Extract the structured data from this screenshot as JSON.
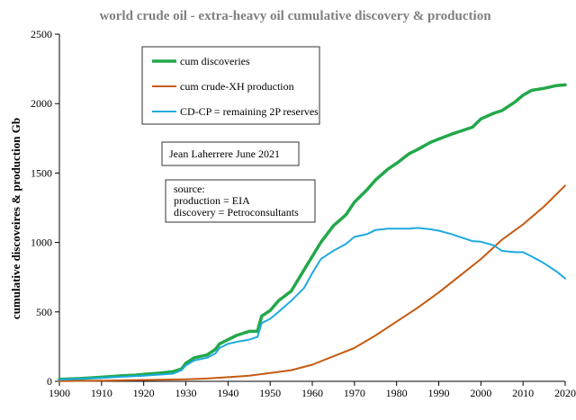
{
  "chart_data": {
    "type": "line",
    "title": "world crude oil - extra-heavy oil cumulative discovery & production",
    "xlabel": "",
    "ylabel": "cumulative discoveires & production Gb",
    "xlim": [
      1900,
      2020
    ],
    "ylim": [
      0,
      2500
    ],
    "x_ticks": [
      "1900",
      "1910",
      "1920",
      "1930",
      "1940",
      "1950",
      "1960",
      "1970",
      "1980",
      "1990",
      "2000",
      "2010",
      "2020"
    ],
    "y_ticks": [
      "0",
      "500",
      "1000",
      "1500",
      "2000",
      "2500"
    ],
    "grid": false,
    "legend_position": "top-left",
    "annotations": [
      "Jean Laherrere June 2021",
      "source:",
      "production = EIA",
      "discovery = Petroconsultants"
    ],
    "series": [
      {
        "name": "cum discoveries",
        "color": "#22a84a",
        "x": [
          1900,
          1905,
          1910,
          1915,
          1918,
          1920,
          1924,
          1927,
          1929,
          1930,
          1932,
          1935,
          1936,
          1937,
          1938,
          1940,
          1942,
          1945,
          1947,
          1948,
          1949,
          1950,
          1952,
          1955,
          1958,
          1960,
          1962,
          1965,
          1968,
          1970,
          1973,
          1975,
          1978,
          1980,
          1983,
          1985,
          1988,
          1990,
          1993,
          1995,
          1998,
          2000,
          2003,
          2005,
          2008,
          2010,
          2012,
          2015,
          2018,
          2020
        ],
        "values": [
          15,
          20,
          30,
          40,
          45,
          50,
          60,
          70,
          90,
          130,
          170,
          190,
          210,
          230,
          270,
          300,
          330,
          360,
          360,
          470,
          490,
          510,
          580,
          650,
          800,
          900,
          1000,
          1120,
          1200,
          1290,
          1380,
          1450,
          1530,
          1570,
          1640,
          1670,
          1720,
          1745,
          1780,
          1800,
          1830,
          1890,
          1930,
          1950,
          2010,
          2060,
          2095,
          2110,
          2130,
          2135
        ]
      },
      {
        "name": "cum crude-XH production",
        "color": "#c55a11",
        "x": [
          1900,
          1910,
          1920,
          1930,
          1935,
          1940,
          1945,
          1950,
          1955,
          1960,
          1965,
          1970,
          1975,
          1980,
          1985,
          1990,
          1995,
          2000,
          2005,
          2010,
          2015,
          2020
        ],
        "values": [
          2,
          5,
          10,
          15,
          20,
          30,
          40,
          60,
          80,
          120,
          180,
          240,
          330,
          430,
          530,
          640,
          760,
          880,
          1020,
          1130,
          1260,
          1410
        ]
      },
      {
        "name": "CD-CP = remaining 2P reserves",
        "color": "#1eaadf",
        "x": [
          1900,
          1910,
          1920,
          1927,
          1929,
          1930,
          1932,
          1935,
          1936,
          1937,
          1938,
          1940,
          1943,
          1945,
          1947,
          1948,
          1950,
          1952,
          1955,
          1958,
          1960,
          1962,
          1965,
          1968,
          1970,
          1973,
          1975,
          1978,
          1980,
          1983,
          1985,
          1988,
          1990,
          1993,
          1995,
          1998,
          2000,
          2003,
          2005,
          2008,
          2010,
          2012,
          2015,
          2018,
          2020
        ],
        "values": [
          12,
          25,
          40,
          55,
          80,
          115,
          150,
          170,
          185,
          200,
          240,
          270,
          290,
          300,
          320,
          420,
          450,
          500,
          580,
          670,
          780,
          880,
          940,
          990,
          1040,
          1060,
          1090,
          1100,
          1100,
          1100,
          1105,
          1095,
          1085,
          1060,
          1040,
          1010,
          1005,
          980,
          940,
          930,
          930,
          900,
          850,
          790,
          740
        ]
      }
    ]
  }
}
